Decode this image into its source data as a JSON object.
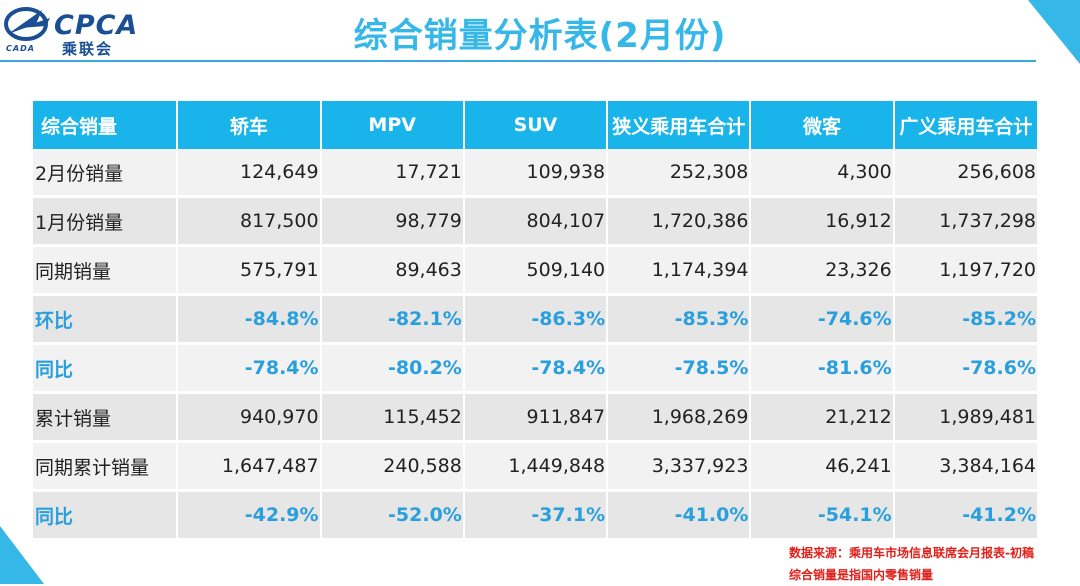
{
  "header": {
    "logo_text": "CPCA",
    "logo_cn": "乘联会",
    "logo_sub": "CADA",
    "title": "综合销量分析表(2月份)"
  },
  "table": {
    "headers": [
      "综合销量",
      "轿车",
      "MPV",
      "SUV",
      "狭义乘用车合计",
      "微客",
      "广义乘用车合计"
    ],
    "rows": [
      {
        "label": "2月份销量",
        "values": [
          "124,649",
          "17,721",
          "109,938",
          "252,308",
          "4,300",
          "256,608"
        ],
        "kind": "number"
      },
      {
        "label": "1月份销量",
        "values": [
          "817,500",
          "98,779",
          "804,107",
          "1,720,386",
          "16,912",
          "1,737,298"
        ],
        "kind": "number"
      },
      {
        "label": "同期销量",
        "values": [
          "575,791",
          "89,463",
          "509,140",
          "1,174,394",
          "23,326",
          "1,197,720"
        ],
        "kind": "number"
      },
      {
        "label": "环比",
        "values": [
          "-84.8%",
          "-82.1%",
          "-86.3%",
          "-85.3%",
          "-74.6%",
          "-85.2%"
        ],
        "kind": "pct"
      },
      {
        "label": "同比",
        "values": [
          "-78.4%",
          "-80.2%",
          "-78.4%",
          "-78.5%",
          "-81.6%",
          "-78.6%"
        ],
        "kind": "pct"
      },
      {
        "label": "累计销量",
        "values": [
          "940,970",
          "115,452",
          "911,847",
          "1,968,269",
          "21,212",
          "1,989,481"
        ],
        "kind": "number"
      },
      {
        "label": "同期累计销量",
        "values": [
          "1,647,487",
          "240,588",
          "1,449,848",
          "3,337,923",
          "46,241",
          "3,384,164"
        ],
        "kind": "number"
      },
      {
        "label": "同比",
        "values": [
          "-42.9%",
          "-52.0%",
          "-37.1%",
          "-41.0%",
          "-54.1%",
          "-41.2%"
        ],
        "kind": "pct"
      }
    ]
  },
  "notes": {
    "source": "数据来源：乘用车市场信息联席会月报表-初稿",
    "definition": "综合销量是指国内零售销量"
  },
  "colors": {
    "accent": "#18b4ea",
    "title": "#35b7e8",
    "pct_text": "#2a9fdd",
    "note_text": "#e0201b"
  }
}
